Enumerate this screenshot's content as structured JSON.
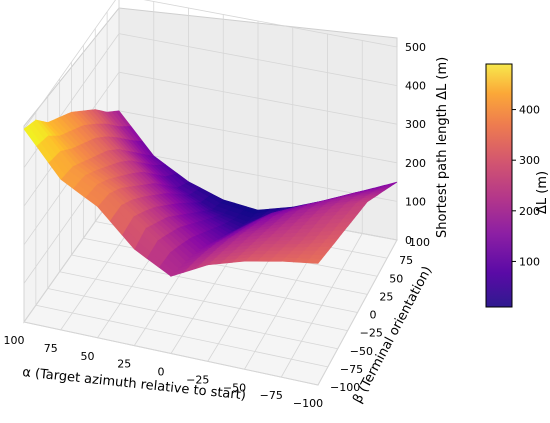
{
  "chart_data": {
    "type": "surface3d",
    "title": "",
    "xlabel": "α (Target azimuth relative to start)",
    "ylabel": "β (Terminal orientation)",
    "zlabel": "Shortest path length ΔL (m)",
    "colorbar_label": "ΔL (m)",
    "colormap": "plasma",
    "xlim": [
      -100,
      100
    ],
    "ylim": [
      -100,
      100
    ],
    "zlim": [
      0,
      500
    ],
    "x_ticks": [
      "100",
      "75",
      "50",
      "25",
      "0",
      "−25",
      "−50",
      "−75",
      "−100"
    ],
    "y_ticks": [
      "−100",
      "−75",
      "−50",
      "−25",
      "0",
      "25",
      "50",
      "75",
      "100"
    ],
    "z_ticks": [
      "0",
      "100",
      "200",
      "300",
      "400",
      "500"
    ],
    "colorbar_ticks": [
      "100",
      "200",
      "300",
      "400"
    ],
    "colorbar_range": [
      10,
      490
    ],
    "alpha_grid": [
      -100,
      -75,
      -50,
      -25,
      0,
      25,
      50,
      75,
      100
    ],
    "beta_grid": [
      -100,
      -75,
      -50,
      -25,
      0,
      25,
      50,
      75,
      100
    ],
    "surface_z": [
      [
        315,
        300,
        285,
        270,
        255,
        240,
        210,
        180,
        150
      ],
      [
        300,
        280,
        260,
        245,
        230,
        210,
        185,
        150,
        110
      ],
      [
        280,
        260,
        240,
        220,
        200,
        180,
        150,
        110,
        70
      ],
      [
        250,
        230,
        210,
        190,
        165,
        140,
        110,
        70,
        35
      ],
      [
        200,
        185,
        165,
        140,
        110,
        80,
        50,
        25,
        10
      ],
      [
        250,
        260,
        230,
        200,
        160,
        120,
        80,
        40,
        20
      ],
      [
        340,
        330,
        300,
        260,
        220,
        180,
        130,
        80,
        50
      ],
      [
        390,
        380,
        350,
        320,
        290,
        250,
        200,
        150,
        100
      ],
      [
        500,
        480,
        430,
        400,
        370,
        330,
        290,
        240,
        200
      ]
    ]
  }
}
